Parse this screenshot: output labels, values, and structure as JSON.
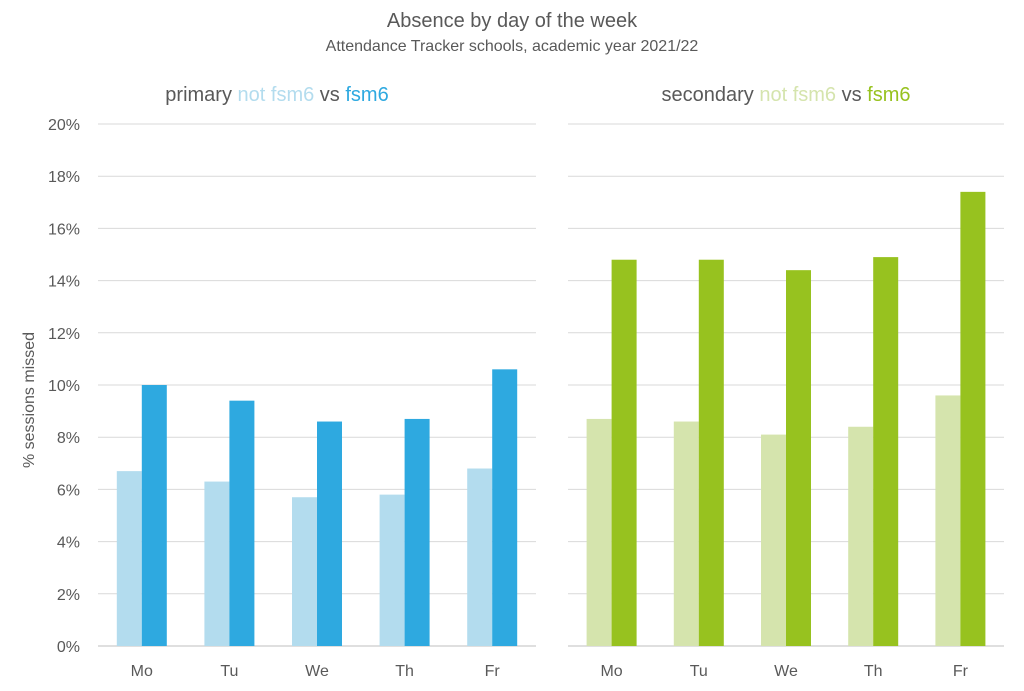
{
  "title": "Absence by day of the week",
  "subtitle": "Attendance Tracker schools, academic year 2021/22",
  "ylabel": "% sessions missed",
  "colors": {
    "primary_not_fsm6": "#b3dcee",
    "primary_fsm6": "#2ea9e0",
    "secondary_not_fsm6": "#d5e4ad",
    "secondary_fsm6": "#97c21f",
    "text": "#595959",
    "grid": "#d9d9d9"
  },
  "panels": [
    {
      "title_parts": [
        {
          "text": "primary ",
          "color": "#595959"
        },
        {
          "text": "not fsm6",
          "color": "#b3dcee"
        },
        {
          "text": " vs ",
          "color": "#595959"
        },
        {
          "text": "fsm6",
          "color": "#2ea9e0"
        }
      ]
    },
    {
      "title_parts": [
        {
          "text": "secondary ",
          "color": "#595959"
        },
        {
          "text": "not fsm6",
          "color": "#d5e4ad"
        },
        {
          "text": " vs ",
          "color": "#595959"
        },
        {
          "text": "fsm6",
          "color": "#97c21f"
        }
      ]
    }
  ],
  "chart_data": [
    {
      "type": "bar",
      "title": "primary not fsm6 vs fsm6",
      "categories": [
        "Mo",
        "Tu",
        "We",
        "Th",
        "Fr"
      ],
      "series": [
        {
          "name": "not fsm6",
          "values": [
            6.7,
            6.3,
            5.7,
            5.8,
            6.8
          ],
          "color": "#b3dcee"
        },
        {
          "name": "fsm6",
          "values": [
            10.0,
            9.4,
            8.6,
            8.7,
            10.6
          ],
          "color": "#2ea9e0"
        }
      ],
      "ylabel": "% sessions missed",
      "ylim": [
        0,
        20
      ],
      "yticks": [
        "0%",
        "2%",
        "4%",
        "6%",
        "8%",
        "10%",
        "12%",
        "14%",
        "16%",
        "18%",
        "20%"
      ],
      "grid": true
    },
    {
      "type": "bar",
      "title": "secondary not fsm6 vs fsm6",
      "categories": [
        "Mo",
        "Tu",
        "We",
        "Th",
        "Fr"
      ],
      "series": [
        {
          "name": "not fsm6",
          "values": [
            8.7,
            8.6,
            8.1,
            8.4,
            9.6
          ],
          "color": "#d5e4ad"
        },
        {
          "name": "fsm6",
          "values": [
            14.8,
            14.8,
            14.4,
            14.9,
            17.4
          ],
          "color": "#97c21f"
        }
      ],
      "ylim": [
        0,
        20
      ],
      "grid": true
    }
  ]
}
